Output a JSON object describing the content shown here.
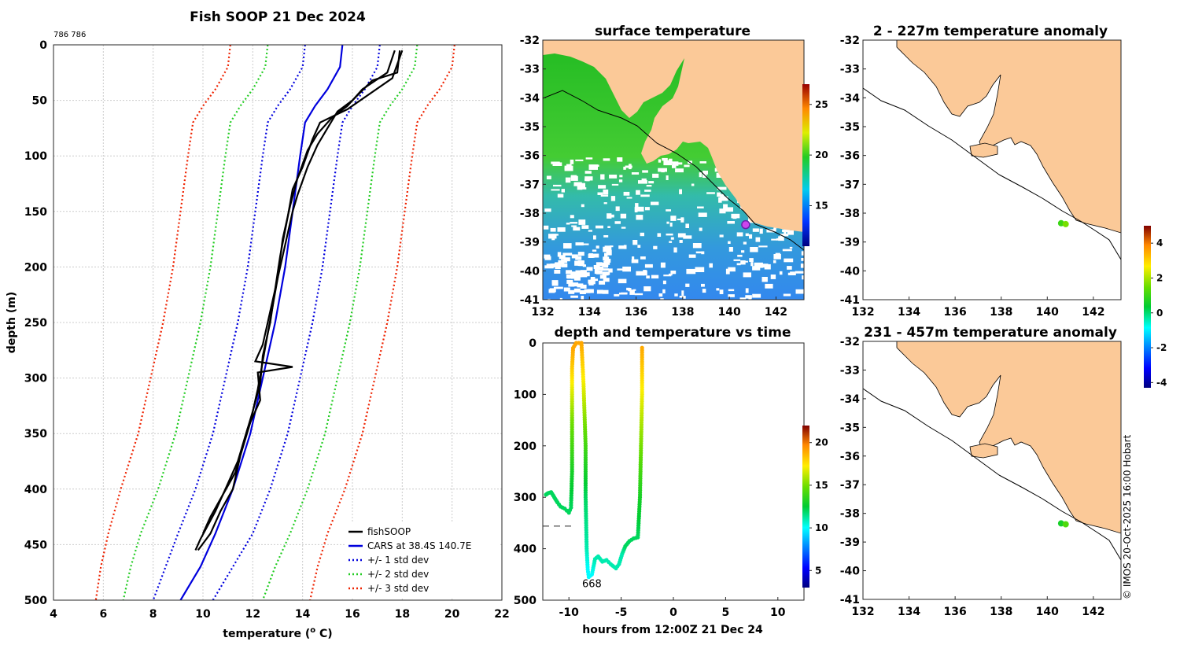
{
  "figure_meta": {
    "page_title": "Fish SOOP 21 Dec 2024",
    "id_label": "786 786",
    "copyright": "© IMOS 20-Oct-2025 16:00 Hobart"
  },
  "colors": {
    "land": "#fbc998",
    "profile": "#000000",
    "cars": "#0000dd",
    "std1": "#0000dd",
    "std2": "#22cc22",
    "std3": "#ee2200",
    "marker": "#cc44ee"
  },
  "chart_data": [
    {
      "id": "profile",
      "type": "line",
      "title": "Fish SOOP 21 Dec 2024",
      "xlabel": "temperature (",
      "xlabel_sup": "o",
      "xlabel_unit": " C)",
      "ylabel": "depth (m)",
      "xlim": [
        4,
        22
      ],
      "ylim": [
        0,
        500
      ],
      "y_inverted": true,
      "xticks": [
        4,
        6,
        8,
        10,
        12,
        14,
        16,
        18,
        20,
        22
      ],
      "yticks": [
        0,
        50,
        100,
        150,
        200,
        250,
        300,
        350,
        400,
        450,
        500
      ],
      "grid": true,
      "legend_position": "bottom-right",
      "series": [
        {
          "name": "fishSOOP",
          "style": "solid",
          "color_key": "profile",
          "points": [
            [
              17.9,
              5
            ],
            [
              17.8,
              25
            ],
            [
              16.8,
              32
            ],
            [
              16.0,
              50
            ],
            [
              15.4,
              60
            ],
            [
              15.0,
              75
            ],
            [
              14.6,
              90
            ],
            [
              14.2,
              110
            ],
            [
              13.8,
              135
            ],
            [
              13.6,
              150
            ],
            [
              13.3,
              180
            ],
            [
              13.0,
              210
            ],
            [
              12.8,
              235
            ],
            [
              12.6,
              260
            ],
            [
              12.4,
              285
            ],
            [
              12.2,
              310
            ],
            [
              11.9,
              340
            ],
            [
              11.5,
              370
            ],
            [
              11.2,
              400
            ],
            [
              10.7,
              420
            ],
            [
              10.3,
              440
            ],
            [
              9.8,
              455
            ]
          ]
        },
        {
          "name": "",
          "style": "solid",
          "color_key": "profile",
          "points": [
            [
              18.0,
              5
            ],
            [
              17.6,
              30
            ],
            [
              15.8,
              58
            ],
            [
              14.7,
              70
            ],
            [
              14.4,
              85
            ],
            [
              14.0,
              110
            ],
            [
              13.6,
              130
            ],
            [
              13.4,
              155
            ],
            [
              13.1,
              190
            ],
            [
              12.9,
              220
            ],
            [
              12.7,
              250
            ],
            [
              12.4,
              280
            ],
            [
              12.3,
              305
            ],
            [
              12.0,
              330
            ],
            [
              11.6,
              360
            ],
            [
              11.3,
              385
            ],
            [
              10.8,
              405
            ],
            [
              10.3,
              425
            ],
            [
              10.0,
              440
            ]
          ]
        },
        {
          "name": "",
          "style": "solid",
          "color_key": "profile",
          "points": [
            [
              17.7,
              5
            ],
            [
              17.4,
              25
            ],
            [
              16.4,
              40
            ],
            [
              15.8,
              55
            ],
            [
              15.2,
              65
            ],
            [
              14.6,
              80
            ],
            [
              14.2,
              95
            ],
            [
              13.8,
              120
            ],
            [
              13.5,
              145
            ],
            [
              13.2,
              175
            ],
            [
              13.0,
              210
            ],
            [
              12.7,
              240
            ],
            [
              12.4,
              270
            ],
            [
              12.1,
              285
            ],
            [
              13.6,
              290
            ],
            [
              12.2,
              295
            ],
            [
              12.3,
              320
            ],
            [
              11.8,
              345
            ],
            [
              11.4,
              375
            ],
            [
              10.9,
              400
            ],
            [
              10.5,
              420
            ],
            [
              9.9,
              445
            ],
            [
              9.7,
              455
            ]
          ]
        }
      ],
      "reference_series": [
        {
          "name": "CARS at 38.4S 140.7E",
          "style": "solid",
          "color_key": "cars",
          "points": [
            [
              15.6,
              0
            ],
            [
              15.5,
              20
            ],
            [
              15.0,
              40
            ],
            [
              14.5,
              55
            ],
            [
              14.1,
              70
            ],
            [
              13.9,
              100
            ],
            [
              13.6,
              150
            ],
            [
              13.3,
              200
            ],
            [
              12.9,
              250
            ],
            [
              12.4,
              300
            ],
            [
              11.9,
              350
            ],
            [
              11.2,
              400
            ],
            [
              10.5,
              440
            ],
            [
              9.9,
              470
            ],
            [
              9.1,
              500
            ]
          ]
        },
        {
          "name": "+/- 1 std dev",
          "style": "dotted",
          "color_key": "std1",
          "lower": [
            [
              14.1,
              0
            ],
            [
              14.0,
              20
            ],
            [
              13.5,
              40
            ],
            [
              13.0,
              55
            ],
            [
              12.6,
              70
            ],
            [
              12.4,
              100
            ],
            [
              12.1,
              150
            ],
            [
              11.8,
              200
            ],
            [
              11.4,
              250
            ],
            [
              10.9,
              300
            ],
            [
              10.4,
              350
            ],
            [
              9.7,
              400
            ],
            [
              9.0,
              440
            ],
            [
              8.5,
              470
            ],
            [
              8.0,
              500
            ]
          ],
          "upper": [
            [
              17.1,
              0
            ],
            [
              17.0,
              20
            ],
            [
              16.5,
              40
            ],
            [
              16.0,
              55
            ],
            [
              15.6,
              70
            ],
            [
              15.4,
              100
            ],
            [
              15.1,
              150
            ],
            [
              14.8,
              200
            ],
            [
              14.4,
              250
            ],
            [
              13.9,
              300
            ],
            [
              13.4,
              350
            ],
            [
              12.7,
              400
            ],
            [
              12.0,
              440
            ],
            [
              11.2,
              470
            ],
            [
              10.4,
              500
            ]
          ]
        },
        {
          "name": "+/- 2 std dev",
          "style": "dotted",
          "color_key": "std2",
          "lower": [
            [
              12.6,
              0
            ],
            [
              12.5,
              20
            ],
            [
              12.0,
              40
            ],
            [
              11.5,
              55
            ],
            [
              11.1,
              70
            ],
            [
              10.9,
              100
            ],
            [
              10.6,
              150
            ],
            [
              10.3,
              200
            ],
            [
              9.9,
              250
            ],
            [
              9.4,
              300
            ],
            [
              8.9,
              350
            ],
            [
              8.2,
              400
            ],
            [
              7.5,
              440
            ],
            [
              7.1,
              470
            ],
            [
              6.8,
              500
            ]
          ],
          "upper": [
            [
              18.6,
              0
            ],
            [
              18.5,
              20
            ],
            [
              18.0,
              40
            ],
            [
              17.5,
              55
            ],
            [
              17.1,
              70
            ],
            [
              16.9,
              100
            ],
            [
              16.6,
              150
            ],
            [
              16.3,
              200
            ],
            [
              15.9,
              250
            ],
            [
              15.4,
              300
            ],
            [
              14.9,
              350
            ],
            [
              14.2,
              400
            ],
            [
              13.5,
              440
            ],
            [
              12.9,
              470
            ],
            [
              12.4,
              500
            ]
          ]
        },
        {
          "name": "+/- 3 std dev",
          "style": "dotted",
          "color_key": "std3",
          "lower": [
            [
              11.1,
              0
            ],
            [
              11.0,
              20
            ],
            [
              10.5,
              40
            ],
            [
              10.0,
              55
            ],
            [
              9.6,
              70
            ],
            [
              9.4,
              100
            ],
            [
              9.1,
              150
            ],
            [
              8.8,
              200
            ],
            [
              8.4,
              250
            ],
            [
              7.9,
              300
            ],
            [
              7.4,
              350
            ],
            [
              6.7,
              400
            ],
            [
              6.2,
              440
            ],
            [
              5.9,
              470
            ],
            [
              5.7,
              500
            ]
          ],
          "upper": [
            [
              20.1,
              0
            ],
            [
              20.0,
              20
            ],
            [
              19.5,
              40
            ],
            [
              19.0,
              55
            ],
            [
              18.6,
              70
            ],
            [
              18.4,
              100
            ],
            [
              18.1,
              150
            ],
            [
              17.8,
              200
            ],
            [
              17.4,
              250
            ],
            [
              16.9,
              300
            ],
            [
              16.4,
              350
            ],
            [
              15.7,
              400
            ],
            [
              15.0,
              440
            ],
            [
              14.6,
              470
            ],
            [
              14.3,
              500
            ]
          ]
        }
      ]
    },
    {
      "id": "depth_time",
      "type": "line",
      "title": "depth and temperature vs time",
      "xlabel": "hours from 12:00Z 21 Dec 24",
      "ylabel": "",
      "xlim": [
        -12.5,
        12.5
      ],
      "ylim": [
        0,
        500
      ],
      "y_inverted": true,
      "xticks": [
        -10,
        -5,
        0,
        5,
        10
      ],
      "yticks": [
        0,
        100,
        200,
        300,
        400,
        500
      ],
      "annotation": "668",
      "annotation_at": [
        -7.8,
        475
      ],
      "dashed_line": {
        "depth": 356,
        "x": [
          -12.5,
          -9.6
        ]
      },
      "colorbar": {
        "min": 3,
        "max": 22,
        "ticks": [
          5,
          10,
          15,
          20
        ]
      },
      "points": [
        [
          -12.2,
          295,
          12
        ],
        [
          -12.0,
          292,
          12
        ],
        [
          -11.7,
          290,
          12
        ],
        [
          -11.4,
          300,
          12
        ],
        [
          -11.1,
          310,
          12
        ],
        [
          -10.8,
          318,
          12
        ],
        [
          -10.4,
          322,
          12
        ],
        [
          -10.0,
          330,
          12
        ],
        [
          -9.8,
          320,
          12
        ],
        [
          -9.7,
          250,
          13
        ],
        [
          -9.7,
          150,
          15
        ],
        [
          -9.7,
          50,
          18
        ],
        [
          -9.6,
          10,
          19
        ],
        [
          -9.3,
          0,
          19
        ],
        [
          -8.8,
          0,
          19
        ],
        [
          -8.6,
          80,
          17
        ],
        [
          -8.4,
          200,
          14
        ],
        [
          -8.4,
          300,
          12
        ],
        [
          -8.3,
          400,
          11
        ],
        [
          -8.2,
          440,
          10
        ],
        [
          -8.1,
          455,
          10
        ],
        [
          -7.8,
          450,
          10
        ],
        [
          -7.5,
          420,
          11
        ],
        [
          -7.2,
          415,
          11
        ],
        [
          -6.8,
          425,
          11
        ],
        [
          -6.4,
          422,
          11
        ],
        [
          -6.0,
          430,
          11
        ],
        [
          -5.5,
          438,
          11
        ],
        [
          -5.2,
          430,
          11
        ],
        [
          -4.9,
          410,
          11
        ],
        [
          -4.6,
          395,
          12
        ],
        [
          -4.2,
          385,
          12
        ],
        [
          -3.8,
          380,
          12
        ],
        [
          -3.4,
          378,
          12
        ],
        [
          -3.2,
          300,
          13
        ],
        [
          -3.1,
          200,
          15
        ],
        [
          -3.0,
          100,
          17
        ],
        [
          -3.0,
          5,
          19
        ]
      ]
    },
    {
      "id": "surface_temperature",
      "type": "heatmap",
      "title": "surface temperature",
      "xlim": [
        132,
        143.2
      ],
      "ylim": [
        -41,
        -32
      ],
      "xticks": [
        132,
        134,
        136,
        138,
        140,
        142
      ],
      "yticks": [
        -32,
        -33,
        -34,
        -35,
        -36,
        -37,
        -38,
        -39,
        -40,
        -41
      ],
      "colorbar": {
        "min": 11,
        "max": 27,
        "ticks": [
          15,
          20,
          25
        ]
      },
      "marker": {
        "lon": 140.7,
        "lat": -38.4
      }
    },
    {
      "id": "anomaly_2_227",
      "type": "heatmap",
      "title": "2 - 227m temperature anomaly",
      "xlim": [
        132,
        143.2
      ],
      "ylim": [
        -41,
        -32
      ],
      "xticks": [
        132,
        134,
        136,
        138,
        140,
        142
      ],
      "yticks": [
        -32,
        -33,
        -34,
        -35,
        -36,
        -37,
        -38,
        -39,
        -40,
        -41
      ],
      "points": [
        [
          140.6,
          -38.35,
          1.0
        ],
        [
          140.8,
          -38.38,
          1.6
        ]
      ]
    },
    {
      "id": "anomaly_231_457",
      "type": "heatmap",
      "title": "231 - 457m temperature anomaly",
      "xlim": [
        132,
        143.2
      ],
      "ylim": [
        -41,
        -32
      ],
      "xticks": [
        132,
        134,
        136,
        138,
        140,
        142
      ],
      "yticks": [
        -32,
        -33,
        -34,
        -35,
        -36,
        -37,
        -38,
        -39,
        -40,
        -41
      ],
      "points": [
        [
          140.6,
          -38.35,
          0.6
        ],
        [
          140.8,
          -38.38,
          1.2
        ]
      ]
    },
    {
      "id": "anomaly_colorbar",
      "type": "heatmap",
      "title": "",
      "range": [
        -4.3,
        5
      ],
      "ticks": [
        -4,
        -2,
        0,
        2,
        4
      ]
    }
  ]
}
